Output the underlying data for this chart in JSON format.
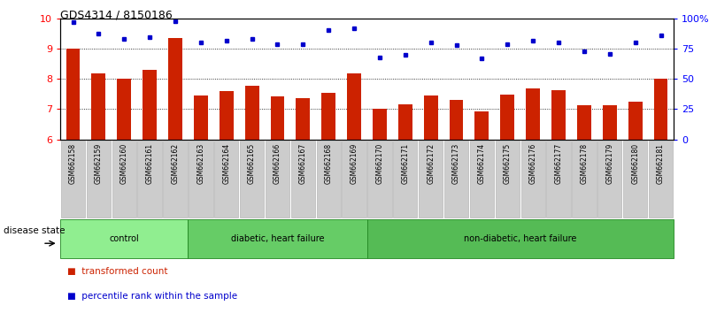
{
  "title": "GDS4314 / 8150186",
  "samples": [
    "GSM662158",
    "GSM662159",
    "GSM662160",
    "GSM662161",
    "GSM662162",
    "GSM662163",
    "GSM662164",
    "GSM662165",
    "GSM662166",
    "GSM662167",
    "GSM662168",
    "GSM662169",
    "GSM662170",
    "GSM662171",
    "GSM662172",
    "GSM662173",
    "GSM662174",
    "GSM662175",
    "GSM662176",
    "GSM662177",
    "GSM662178",
    "GSM662179",
    "GSM662180",
    "GSM662181"
  ],
  "bar_values": [
    9.0,
    8.2,
    8.0,
    8.3,
    9.35,
    7.45,
    7.6,
    7.78,
    7.42,
    7.38,
    7.55,
    8.18,
    7.02,
    7.15,
    7.45,
    7.32,
    6.94,
    7.47,
    7.68,
    7.62,
    7.12,
    7.12,
    7.25,
    8.02
  ],
  "dot_values": [
    97,
    88,
    83,
    85,
    98,
    80,
    82,
    83,
    79,
    79,
    91,
    92,
    68,
    70,
    80,
    78,
    67,
    79,
    82,
    80,
    73,
    71,
    80,
    86
  ],
  "bar_color": "#cc2200",
  "dot_color": "#0000cc",
  "ylim_left": [
    6,
    10
  ],
  "ylim_right": [
    0,
    100
  ],
  "yticks_left": [
    6,
    7,
    8,
    9,
    10
  ],
  "yticks_right": [
    0,
    25,
    50,
    75,
    100
  ],
  "ytick_labels_right": [
    "0",
    "25",
    "50",
    "75",
    "100%"
  ],
  "groups": [
    {
      "label": "control",
      "start": 0,
      "end": 5,
      "color": "#90ee90"
    },
    {
      "label": "diabetic, heart failure",
      "start": 5,
      "end": 12,
      "color": "#66cc66"
    },
    {
      "label": "non-diabetic, heart failure",
      "start": 12,
      "end": 24,
      "color": "#55bb55"
    }
  ],
  "legend_bar_label": "transformed count",
  "legend_dot_label": "percentile rank within the sample",
  "xlabel_disease": "disease state"
}
